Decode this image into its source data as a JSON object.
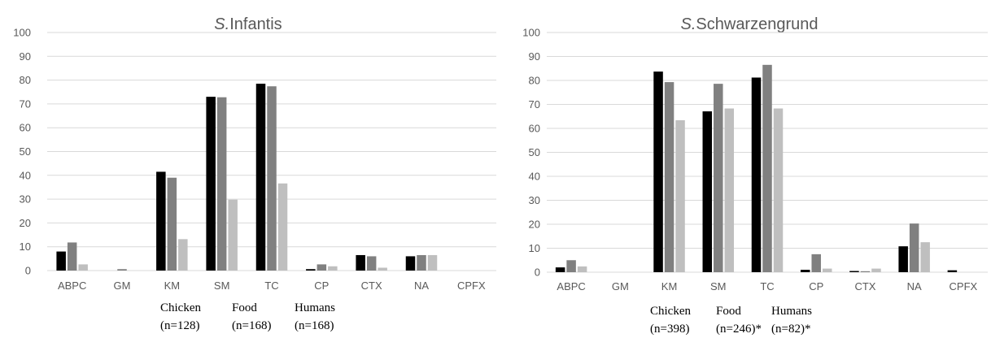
{
  "chart_data": [
    {
      "type": "bar",
      "title_prefix": "S.",
      "title_name": "Infantis",
      "ylim": [
        0,
        100
      ],
      "yticks": [
        "0",
        "10",
        "20",
        "30",
        "40",
        "50",
        "60",
        "70",
        "80",
        "90",
        "100"
      ],
      "categories": [
        "ABPC",
        "GM",
        "KM",
        "SM",
        "TC",
        "CP",
        "CTX",
        "NA",
        "CPFX"
      ],
      "series": [
        {
          "name": "Chicken",
          "n": "(n=128)",
          "color": "#000000",
          "values": [
            8.0,
            0.0,
            41.5,
            73.0,
            78.5,
            0.6,
            6.5,
            6.0,
            0.0
          ]
        },
        {
          "name": "Food",
          "n": "(n=168)",
          "color": "#808080",
          "values": [
            11.8,
            0.6,
            39.0,
            72.8,
            77.4,
            2.6,
            6.0,
            6.5,
            0.0
          ]
        },
        {
          "name": "Humans",
          "n": "(n=168)",
          "color": "#bfbfbf",
          "values": [
            2.6,
            0.0,
            13.2,
            29.8,
            36.6,
            1.8,
            1.2,
            6.5,
            0.0
          ]
        }
      ]
    },
    {
      "type": "bar",
      "title_prefix": "S.",
      "title_name": "Schwarzengrund",
      "ylim": [
        0,
        100
      ],
      "yticks": [
        "0",
        "10",
        "20",
        "30",
        "40",
        "50",
        "60",
        "70",
        "80",
        "90",
        "100"
      ],
      "categories": [
        "ABPC",
        "GM",
        "KM",
        "SM",
        "TC",
        "CP",
        "CTX",
        "NA",
        "CPFX"
      ],
      "series": [
        {
          "name": "Chicken",
          "n": "(n=398)",
          "color": "#000000",
          "values": [
            2.0,
            0.0,
            83.7,
            67.1,
            81.2,
            1.0,
            0.5,
            10.8,
            0.8
          ]
        },
        {
          "name": "Food",
          "n": "(n=246)*",
          "color": "#808080",
          "values": [
            5.0,
            0.0,
            79.3,
            78.6,
            86.5,
            7.5,
            0.4,
            20.3,
            0.0
          ]
        },
        {
          "name": "Humans",
          "n": "(n=82)*",
          "color": "#bfbfbf",
          "values": [
            2.4,
            0.0,
            63.4,
            68.3,
            68.3,
            1.5,
            1.5,
            12.5,
            0.0
          ]
        }
      ]
    }
  ]
}
